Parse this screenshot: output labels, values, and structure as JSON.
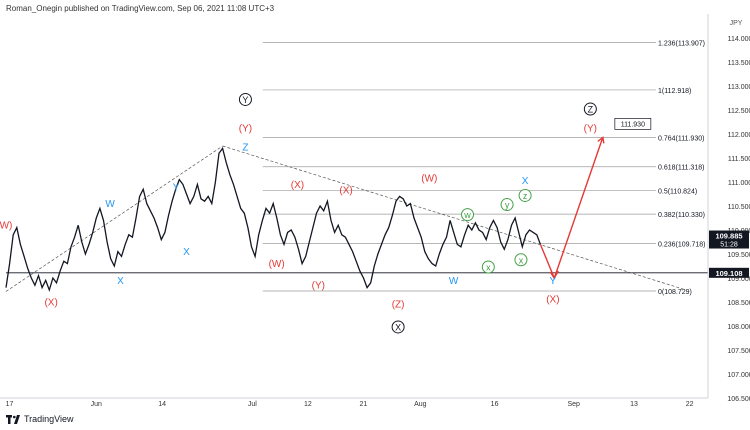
{
  "header": {
    "published_by": "Roman_Onegin published on TradingView.com, Sep 06, 2021 11:08 UTC+3"
  },
  "footer": {
    "logo_text": "TradingView"
  },
  "colors": {
    "red_label": "#e53935",
    "blue_label": "#2196f3",
    "green_label": "#43a047",
    "black_label": "#131722",
    "candle": "#131722",
    "grid_dash": "#9e9e9e"
  },
  "chart_data": {
    "type": "line",
    "symbol_label": "JPY",
    "y_axis": {
      "min": 106.5,
      "max": 114.5,
      "ticks": [
        "114.000",
        "113.500",
        "113.000",
        "112.500",
        "112.000",
        "111.500",
        "111.000",
        "110.500",
        "110.000",
        "109.500",
        "109.000",
        "108.500",
        "108.000",
        "107.500",
        "107.000",
        "106.500"
      ]
    },
    "x_axis": {
      "ticks": [
        "17",
        "Jun",
        "14",
        "Jul",
        "12",
        "21",
        "Aug",
        "16",
        "Sep",
        "13",
        "22"
      ]
    },
    "price_badges": [
      {
        "label": "109.885",
        "sub": "51:28",
        "value": 109.885,
        "style": "dark"
      },
      {
        "label": "109.108",
        "value": 109.108,
        "style": "dark"
      }
    ],
    "fib_levels": [
      {
        "label": "1.236(113.907)",
        "value": 113.907
      },
      {
        "label": "1(112.918)",
        "value": 112.918
      },
      {
        "label": "0.764(111.930)",
        "value": 111.93
      },
      {
        "label": "0.618(111.318)",
        "value": 111.318
      },
      {
        "label": "0.5(110.824)",
        "value": 110.824
      },
      {
        "label": "0.382(110.330)",
        "value": 110.33
      },
      {
        "label": "0.236(109.718)",
        "value": 109.718
      },
      {
        "label": "0(108.729)",
        "value": 108.729
      }
    ],
    "target_callout": "111.930",
    "horizontal_line": 109.108,
    "wave_labels": [
      {
        "text": "W)",
        "color": "red",
        "x": 0.0,
        "value": 110.1
      },
      {
        "text": "(X)",
        "color": "red",
        "x": 0.065,
        "value": 108.5
      },
      {
        "text": "W",
        "color": "blue",
        "x": 0.15,
        "value": 110.55
      },
      {
        "text": "X",
        "color": "blue",
        "x": 0.165,
        "value": 108.95
      },
      {
        "text": "Y",
        "color": "blue",
        "x": 0.245,
        "value": 110.9
      },
      {
        "text": "X",
        "color": "blue",
        "x": 0.26,
        "value": 109.55
      },
      {
        "text": "Y",
        "color": "black-circle",
        "x": 0.345,
        "value": 112.72
      },
      {
        "text": "(Y)",
        "color": "red",
        "x": 0.345,
        "value": 112.12
      },
      {
        "text": "Z",
        "color": "blue",
        "x": 0.345,
        "value": 111.73
      },
      {
        "text": "(X)",
        "color": "red",
        "x": 0.42,
        "value": 110.95
      },
      {
        "text": "(W)",
        "color": "red",
        "x": 0.39,
        "value": 109.3
      },
      {
        "text": "(X)",
        "color": "red",
        "x": 0.49,
        "value": 110.83
      },
      {
        "text": "(Y)",
        "color": "red",
        "x": 0.45,
        "value": 108.85
      },
      {
        "text": "(W)",
        "color": "red",
        "x": 0.61,
        "value": 111.08
      },
      {
        "text": "(Z)",
        "color": "red",
        "x": 0.565,
        "value": 108.46
      },
      {
        "text": "X",
        "color": "black-circle",
        "x": 0.565,
        "value": 107.98
      },
      {
        "text": "w",
        "color": "green-circle",
        "x": 0.665,
        "value": 110.32
      },
      {
        "text": "W",
        "color": "blue",
        "x": 0.645,
        "value": 108.95
      },
      {
        "text": "x",
        "color": "green-circle",
        "x": 0.695,
        "value": 109.23
      },
      {
        "text": "y",
        "color": "green-circle",
        "x": 0.722,
        "value": 110.53
      },
      {
        "text": "z",
        "color": "green-circle",
        "x": 0.748,
        "value": 110.72
      },
      {
        "text": "X",
        "color": "blue",
        "x": 0.748,
        "value": 111.03
      },
      {
        "text": "x",
        "color": "green-circle",
        "x": 0.742,
        "value": 109.38
      },
      {
        "text": "Z",
        "color": "black-circle",
        "x": 0.842,
        "value": 112.52
      },
      {
        "text": "(Y)",
        "color": "red",
        "x": 0.842,
        "value": 112.12
      },
      {
        "text": "Y",
        "color": "blue",
        "x": 0.788,
        "value": 108.95
      },
      {
        "text": "(X)",
        "color": "red",
        "x": 0.788,
        "value": 108.56
      }
    ],
    "series": [
      {
        "values": [
          108.8,
          109.3,
          109.9,
          110.05,
          109.7,
          109.45,
          109.2,
          109.0,
          108.85,
          109.05,
          108.8,
          108.95,
          108.75,
          109.0,
          108.9,
          109.15,
          109.35,
          109.3,
          109.65,
          109.85,
          110.1,
          109.75,
          109.5,
          109.7,
          109.95,
          110.25,
          110.45,
          110.2,
          109.75,
          109.4,
          109.25,
          109.55,
          109.45,
          109.7,
          109.9,
          109.85,
          110.25,
          110.7,
          110.85,
          110.55,
          110.4,
          110.25,
          110.05,
          109.8,
          109.95,
          110.3,
          110.6,
          110.85,
          111.05,
          110.95,
          110.75,
          110.55,
          110.7,
          110.95,
          110.65,
          110.6,
          110.7,
          110.55,
          111.0,
          111.6,
          111.7,
          111.4,
          111.15,
          110.95,
          110.7,
          110.45,
          110.35,
          110.05,
          109.65,
          109.45,
          109.9,
          110.2,
          110.45,
          110.35,
          110.55,
          110.25,
          109.9,
          109.7,
          109.95,
          110.0,
          109.85,
          109.6,
          109.3,
          109.45,
          109.75,
          110.05,
          110.35,
          110.5,
          110.4,
          110.6,
          110.2,
          109.95,
          110.1,
          109.9,
          109.85,
          109.7,
          109.55,
          109.35,
          109.15,
          109.0,
          108.8,
          108.9,
          109.25,
          109.5,
          109.7,
          109.9,
          110.05,
          110.3,
          110.6,
          110.7,
          110.65,
          110.5,
          110.55,
          110.25,
          110.05,
          109.85,
          109.55,
          109.4,
          109.3,
          109.25,
          109.5,
          109.7,
          109.85,
          110.2,
          109.95,
          109.7,
          109.65,
          109.9,
          110.1,
          110.0,
          110.15,
          110.0,
          109.95,
          109.8,
          110.05,
          110.2,
          110.05,
          109.75,
          109.6,
          109.8,
          110.1,
          110.25,
          109.95,
          109.65,
          109.9,
          110.0,
          109.95,
          109.9,
          109.7
        ]
      },
      {
        "name": "projection",
        "values": [
          109.7,
          109.0,
          111.93
        ]
      }
    ]
  }
}
